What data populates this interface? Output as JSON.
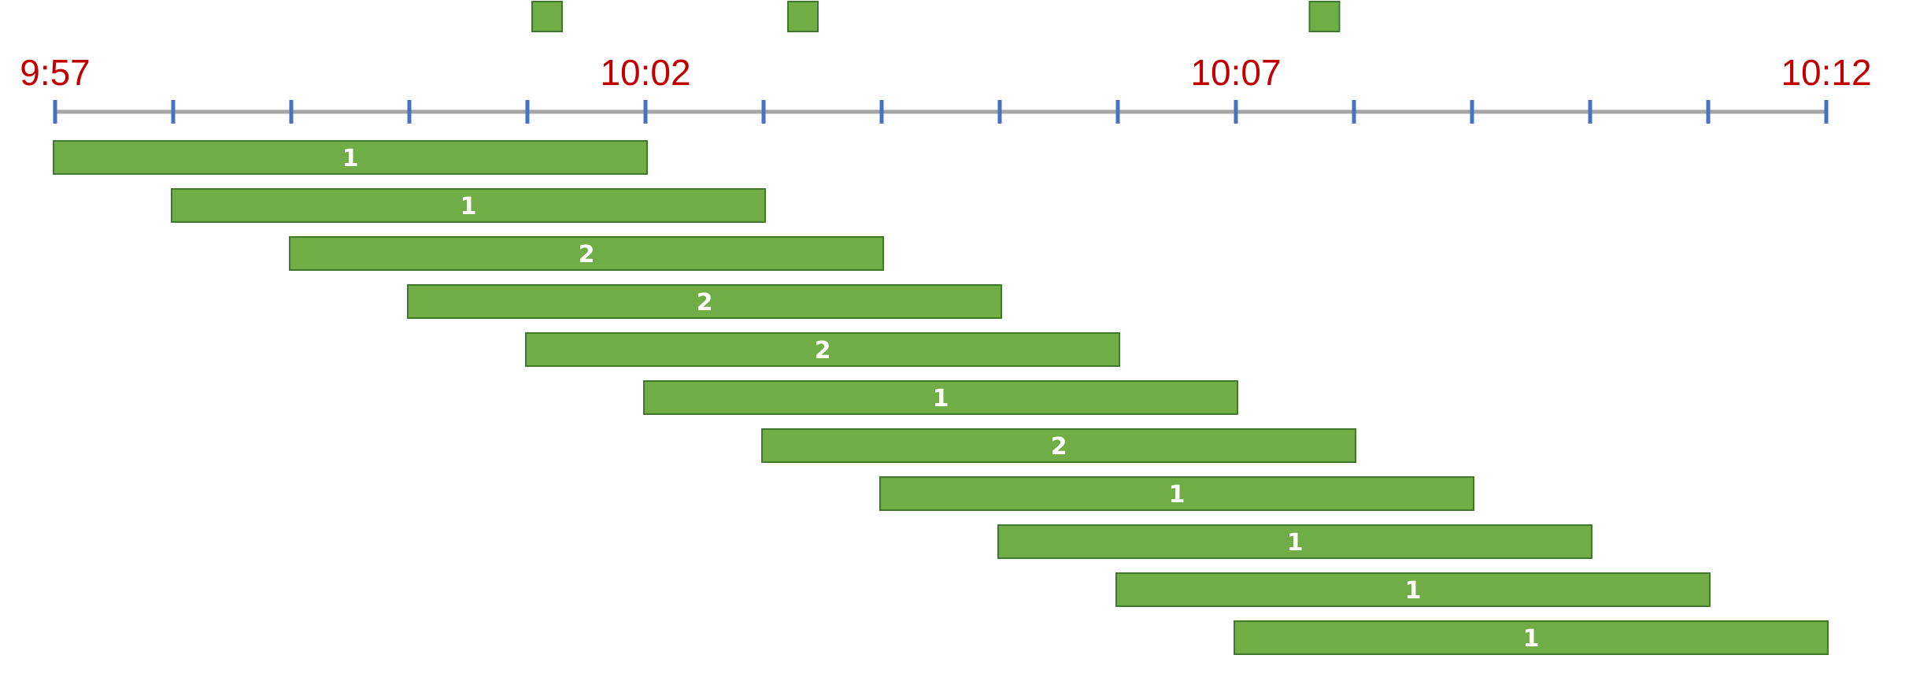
{
  "colors": {
    "event": "#70ad47",
    "event_border": "#3f7a2a",
    "window": "#70ad47",
    "window_border": "#3f7a2a",
    "window_text": "#ffffff",
    "axis_line": "#a6a6a6",
    "tick": "#4472c4",
    "time_label": "#c00000"
  },
  "axis": {
    "tick_times": [
      "9:57",
      "9:58",
      "9:59",
      "10:00",
      "10:01",
      "10:02",
      "10:03",
      "10:04",
      "10:05",
      "10:06",
      "10:07",
      "10:08",
      "10:09",
      "10:10",
      "10:11",
      "10:12"
    ],
    "labels": [
      {
        "time": "9:57",
        "text": "9:57"
      },
      {
        "time": "10:02",
        "text": "10:02"
      },
      {
        "time": "10:07",
        "text": "10:07"
      },
      {
        "time": "10:12",
        "text": "10:12"
      }
    ]
  },
  "events": [
    {
      "time": "10:01:10",
      "icon": "event-square-icon"
    },
    {
      "time": "10:03:20",
      "icon": "event-square-icon"
    },
    {
      "time": "10:07:45",
      "icon": "event-square-icon"
    }
  ],
  "windows": [
    {
      "start": "9:57",
      "end": "10:02",
      "count": "1"
    },
    {
      "start": "9:58",
      "end": "10:03",
      "count": "1"
    },
    {
      "start": "9:59",
      "end": "10:04",
      "count": "2"
    },
    {
      "start": "10:00",
      "end": "10:05",
      "count": "2"
    },
    {
      "start": "10:01",
      "end": "10:06",
      "count": "2"
    },
    {
      "start": "10:02",
      "end": "10:07",
      "count": "1"
    },
    {
      "start": "10:03",
      "end": "10:08",
      "count": "2"
    },
    {
      "start": "10:04",
      "end": "10:09",
      "count": "1"
    },
    {
      "start": "10:05",
      "end": "10:10",
      "count": "1"
    },
    {
      "start": "10:06",
      "end": "10:11",
      "count": "1"
    },
    {
      "start": "10:07",
      "end": "10:12",
      "count": "1"
    }
  ]
}
